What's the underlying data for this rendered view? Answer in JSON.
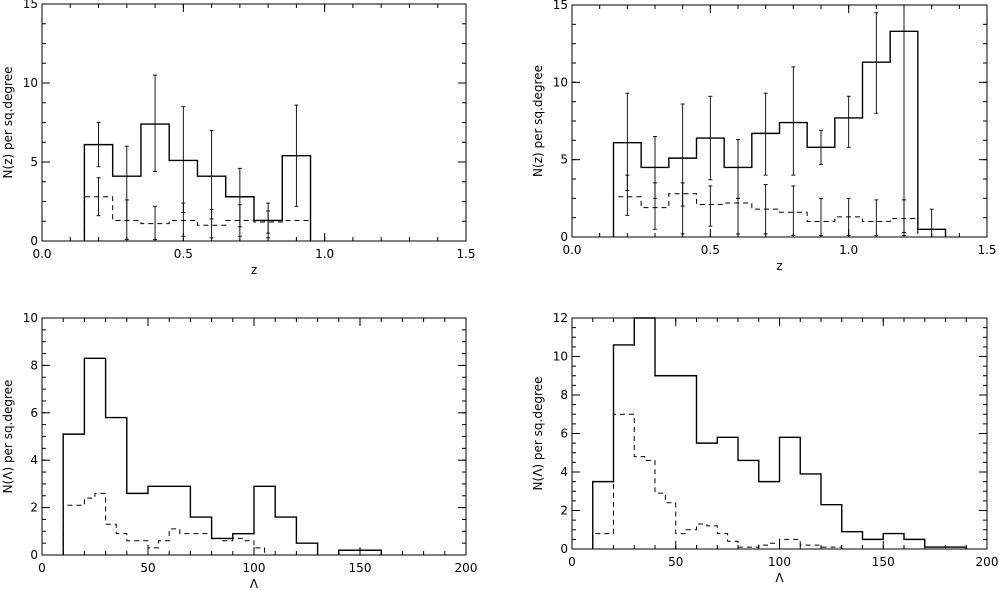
{
  "chart_data": [
    {
      "type": "histogram-step",
      "xlabel": "z",
      "ylabel": "N(z) per sq.degree",
      "xlim": [
        0,
        1.5
      ],
      "ylim": [
        0,
        15
      ],
      "xticks": [
        0.0,
        0.5,
        1.0,
        1.5
      ],
      "xtick_labels": [
        "0.0",
        "0.5",
        "1.0",
        "1.5"
      ],
      "yticks": [
        0,
        5,
        10,
        15
      ],
      "ytick_labels": [
        "0",
        "5",
        "10",
        "15"
      ],
      "series": [
        {
          "style": "solid",
          "bin_edges": [
            0.15,
            0.25,
            0.35,
            0.45,
            0.55,
            0.65,
            0.75,
            0.85,
            0.95
          ],
          "values": [
            6.1,
            4.1,
            7.4,
            5.1,
            4.1,
            2.8,
            1.3,
            5.4
          ],
          "error_x": [
            0.2,
            0.3,
            0.4,
            0.5,
            0.6,
            0.7,
            0.8,
            0.9
          ],
          "error_low": [
            4.7,
            1.3,
            4.4,
            1.8,
            1.4,
            0.9,
            0.2,
            2.2
          ],
          "error_high": [
            7.5,
            6.0,
            10.5,
            8.5,
            7.0,
            4.6,
            2.4,
            8.6
          ]
        },
        {
          "style": "dashed",
          "bin_edges": [
            0.15,
            0.25,
            0.35,
            0.45,
            0.55,
            0.65,
            0.75,
            0.85,
            0.95
          ],
          "values": [
            2.8,
            1.3,
            1.1,
            1.3,
            1.0,
            1.3,
            1.2,
            1.3
          ],
          "error_x": [
            0.2,
            0.3,
            0.4,
            0.5,
            0.6,
            0.7,
            0.8
          ],
          "error_low": [
            1.6,
            0.1,
            0.1,
            0.3,
            0.2,
            0.3,
            0.5
          ],
          "error_high": [
            4.0,
            2.6,
            2.2,
            2.4,
            2.0,
            2.3,
            1.9
          ]
        }
      ]
    },
    {
      "type": "histogram-step",
      "xlabel": "z",
      "ylabel": "N(z) per sq.degree",
      "xlim": [
        0,
        1.5
      ],
      "ylim": [
        0,
        15
      ],
      "xticks": [
        0.0,
        0.5,
        1.0,
        1.5
      ],
      "xtick_labels": [
        "0.0",
        "0.5",
        "1.0",
        "1.5"
      ],
      "yticks": [
        0,
        5,
        10,
        15
      ],
      "ytick_labels": [
        "0",
        "5",
        "10",
        "15"
      ],
      "series": [
        {
          "style": "solid",
          "bin_edges": [
            0.15,
            0.25,
            0.35,
            0.45,
            0.55,
            0.65,
            0.75,
            0.85,
            0.95,
            1.05,
            1.15,
            1.25,
            1.35
          ],
          "values": [
            6.1,
            4.5,
            5.1,
            6.4,
            4.5,
            6.7,
            7.4,
            5.8,
            7.7,
            11.3,
            13.3,
            0.5
          ],
          "error_x": [
            0.2,
            0.3,
            0.4,
            0.5,
            0.6,
            0.7,
            0.8,
            0.9,
            1.0,
            1.1,
            1.2,
            1.3
          ],
          "error_low": [
            3.0,
            2.5,
            2.0,
            3.7,
            2.5,
            4.0,
            4.0,
            4.7,
            5.8,
            8.0,
            0.3,
            0.0
          ],
          "error_high": [
            9.3,
            6.5,
            8.6,
            9.1,
            6.3,
            9.3,
            11.0,
            6.9,
            9.1,
            14.5,
            15.0,
            1.8
          ]
        },
        {
          "style": "dashed",
          "bin_edges": [
            0.15,
            0.25,
            0.35,
            0.45,
            0.55,
            0.65,
            0.75,
            0.85,
            0.95,
            1.05,
            1.15,
            1.25
          ],
          "values": [
            2.6,
            1.9,
            2.8,
            2.1,
            2.2,
            1.8,
            1.6,
            1.0,
            1.3,
            1.0,
            1.2
          ],
          "error_x": [
            0.2,
            0.3,
            0.4,
            0.5,
            0.6,
            0.7,
            0.8,
            0.9,
            1.0,
            1.1,
            1.2
          ],
          "error_low": [
            1.4,
            0.5,
            0.2,
            0.7,
            0.2,
            0.2,
            0.1,
            0.1,
            0.1,
            0.1,
            0.1
          ],
          "error_high": [
            4.0,
            3.5,
            3.5,
            3.3,
            2.5,
            3.4,
            3.3,
            2.5,
            2.5,
            2.4,
            2.4
          ]
        }
      ]
    },
    {
      "type": "histogram-step",
      "xlabel": "Λ",
      "ylabel": "N(Λ) per sq.degree",
      "xlim": [
        0,
        200
      ],
      "ylim": [
        0,
        10
      ],
      "xticks": [
        0,
        50,
        100,
        150,
        200
      ],
      "xtick_labels": [
        "0",
        "50",
        "100",
        "150",
        "200"
      ],
      "yticks": [
        0,
        2,
        4,
        6,
        8,
        10
      ],
      "ytick_labels": [
        "0",
        "2",
        "4",
        "6",
        "8",
        "10"
      ],
      "series": [
        {
          "style": "solid",
          "bin_edges": [
            10,
            20,
            30,
            40,
            50,
            60,
            70,
            80,
            90,
            100,
            110,
            120,
            130
          ],
          "values": [
            5.1,
            8.3,
            5.8,
            2.6,
            2.9,
            2.9,
            1.6,
            0.7,
            0.9,
            2.9,
            1.6,
            0.5
          ]
        },
        {
          "style": "solid",
          "bin_edges": [
            140,
            160
          ],
          "values": [
            0.2
          ]
        },
        {
          "style": "dashed",
          "bin_edges": [
            10,
            20,
            25,
            30,
            35,
            40,
            50,
            55,
            60,
            65,
            80,
            85,
            90,
            95,
            100,
            105
          ],
          "values": [
            2.1,
            2.4,
            2.6,
            1.3,
            0.9,
            0.6,
            0.3,
            0.6,
            1.1,
            0.9,
            0.7,
            0.6,
            0.7,
            0.6,
            0.3
          ]
        }
      ]
    },
    {
      "type": "histogram-step",
      "xlabel": "Λ",
      "ylabel": "N(Λ) per sq.degree",
      "xlim": [
        0,
        200
      ],
      "ylim": [
        0,
        12
      ],
      "xticks": [
        0,
        50,
        100,
        150,
        200
      ],
      "xtick_labels": [
        "0",
        "50",
        "100",
        "150",
        "200"
      ],
      "yticks": [
        0,
        2,
        4,
        6,
        8,
        10,
        12
      ],
      "ytick_labels": [
        "0",
        "2",
        "4",
        "6",
        "8",
        "10",
        "12"
      ],
      "series": [
        {
          "style": "solid",
          "bin_edges": [
            10,
            20,
            30,
            40,
            50,
            60,
            70,
            80,
            90,
            100,
            110,
            120,
            130,
            140,
            150,
            160,
            170,
            190
          ],
          "values": [
            3.5,
            10.6,
            12.0,
            9.0,
            9.0,
            5.5,
            5.8,
            4.6,
            3.5,
            5.8,
            3.9,
            2.3,
            0.9,
            0.5,
            0.8,
            0.5,
            0.1
          ]
        },
        {
          "style": "dashed",
          "bin_edges": [
            10,
            20,
            30,
            35,
            40,
            45,
            50,
            55,
            60,
            65,
            70,
            75,
            80,
            90,
            95,
            100,
            110,
            120,
            130
          ],
          "values": [
            0.8,
            7.0,
            4.8,
            4.6,
            2.9,
            2.4,
            0.8,
            1.0,
            1.3,
            1.2,
            0.8,
            0.4,
            0.1,
            0.2,
            0.3,
            0.5,
            0.2,
            0.1
          ]
        }
      ]
    }
  ]
}
